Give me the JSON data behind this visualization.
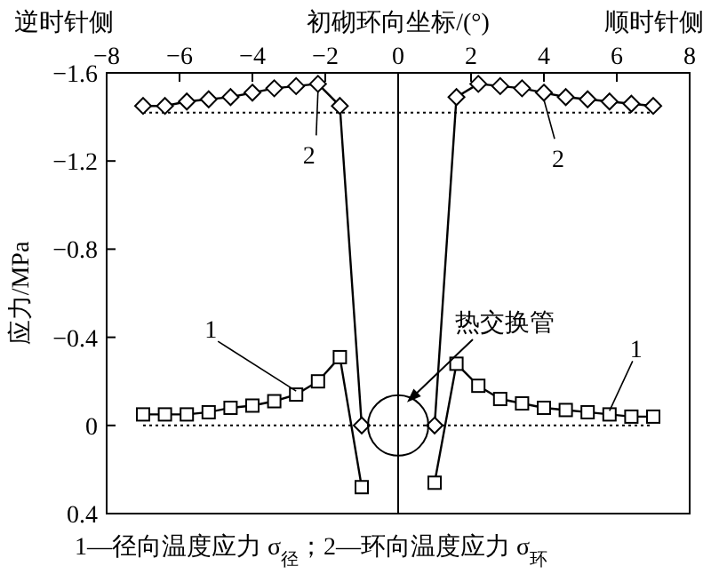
{
  "chart_data": {
    "type": "line",
    "xlabel": "初砌环向坐标/(°)",
    "ylabel": "应力/MPa",
    "xlim": [
      -8,
      8
    ],
    "xticks": [
      -8,
      -6,
      -4,
      -2,
      0,
      2,
      4,
      6,
      8
    ],
    "ylim": [
      0.4,
      -1.6
    ],
    "yticks": [
      -1.6,
      -1.2,
      -0.8,
      -0.4,
      0,
      0.4
    ],
    "series": [
      {
        "color": "#000000",
        "marker": "square",
        "x": [
          -7,
          -6.4,
          -5.8,
          -5.2,
          -4.6,
          -4,
          -3.4,
          -2.8,
          -2.2,
          -1.6,
          -1,
          null,
          1,
          1.6,
          2.2,
          2.8,
          3.4,
          4,
          4.6,
          5.2,
          5.8,
          6.4,
          7
        ],
        "values": [
          -0.05,
          -0.05,
          -0.05,
          -0.06,
          -0.08,
          -0.09,
          -0.11,
          -0.14,
          -0.2,
          -0.31,
          0.28,
          null,
          0.26,
          -0.28,
          -0.18,
          -0.12,
          -0.1,
          -0.08,
          -0.07,
          -0.06,
          -0.05,
          -0.04,
          -0.04
        ]
      },
      {
        "color": "#000000",
        "marker": "diamond",
        "x": [
          -7,
          -6.4,
          -5.8,
          -5.2,
          -4.6,
          -4,
          -3.4,
          -2.8,
          -2.2,
          -1.6,
          -1,
          null,
          1,
          1.6,
          2.2,
          2.8,
          3.4,
          4,
          4.6,
          5.2,
          5.8,
          6.4,
          7
        ],
        "values": [
          -1.45,
          -1.45,
          -1.47,
          -1.48,
          -1.49,
          -1.51,
          -1.53,
          -1.54,
          -1.55,
          -1.45,
          0,
          null,
          0,
          -1.49,
          -1.55,
          -1.54,
          -1.53,
          -1.51,
          -1.49,
          -1.48,
          -1.47,
          -1.46,
          -1.45
        ]
      }
    ],
    "ref_lines": [
      {
        "axis": "y",
        "value": -1.42,
        "line_style": "dotted"
      },
      {
        "axis": "y",
        "value": 0,
        "line_style": "dotted"
      },
      {
        "axis": "x",
        "value": 0,
        "line_style": "solid"
      }
    ],
    "annotations": [
      "逆时针侧",
      "顺时针侧",
      {
        "text": "2",
        "x": -2.2,
        "y": -1.55
      },
      {
        "text": "2",
        "x": 4,
        "y": -1.51
      },
      {
        "text": "1",
        "x": -2.8,
        "y": -0.14
      },
      {
        "text": "1",
        "x": 5.8,
        "y": -0.05
      },
      "热交换管",
      "1—径向温度应力 σ$_{径}$；2—环向温度应力 σ$_{环}$"
    ],
    "grid": false
  }
}
